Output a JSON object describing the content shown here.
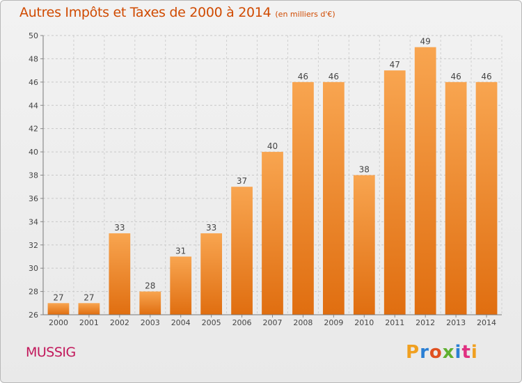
{
  "chart_data": {
    "type": "bar",
    "title": "Autres Impôts et Taxes de 2000 à 2014",
    "subtitle": "(en milliers d'€)",
    "categories": [
      "2000",
      "2001",
      "2002",
      "2003",
      "2004",
      "2005",
      "2006",
      "2007",
      "2008",
      "2009",
      "2010",
      "2011",
      "2012",
      "2013",
      "2014"
    ],
    "values": [
      27,
      27,
      33,
      28,
      31,
      33,
      37,
      40,
      46,
      46,
      38,
      47,
      49,
      46,
      46
    ],
    "ylim": [
      26,
      50
    ],
    "yticks": [
      26,
      28,
      30,
      32,
      34,
      36,
      38,
      40,
      42,
      44,
      46,
      48,
      50
    ],
    "grid": true,
    "bar_color": "#f08a2a"
  },
  "footer": {
    "commune": "MUSSIG",
    "brand": "Proxiti"
  },
  "colors": {
    "title": "#d04a00",
    "commune": "#c2185b",
    "logo_letters": [
      "#f0a020",
      "#2a7fd4",
      "#e05020",
      "#60b030",
      "#2a7fd4",
      "#e03080",
      "#f0a020"
    ]
  }
}
